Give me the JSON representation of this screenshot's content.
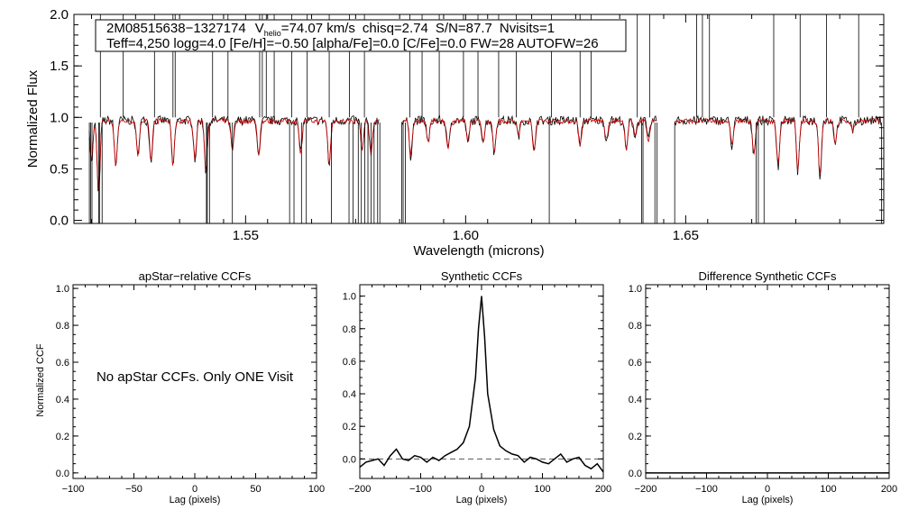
{
  "chart_data": [
    {
      "type": "line",
      "title": "",
      "xlabel": "Wavelength (microns)",
      "ylabel": "Normalized Flux",
      "xlim": [
        1.511,
        1.695
      ],
      "ylim": [
        -0.03,
        2.0
      ],
      "xticks": [
        1.55,
        1.6,
        1.65
      ],
      "xtick_labels": [
        "1.55",
        "1.60",
        "1.65"
      ],
      "yticks": [
        0.0,
        0.5,
        1.0,
        1.5,
        2.0
      ],
      "ytick_labels": [
        "0.0",
        "0.5",
        "1.0",
        "1.5",
        "2.0"
      ],
      "chips": [
        [
          1.5145,
          1.5805
        ],
        [
          1.5855,
          1.6435
        ],
        [
          1.6475,
          1.6945
        ]
      ],
      "series": [
        {
          "name": "observed",
          "color": "#000000"
        },
        {
          "name": "model",
          "color": "#cc0000"
        }
      ],
      "annotation": {
        "star": "2M08515638−1327174",
        "v_label": "V",
        "v_sub": "helio",
        "v_value": "=74.07 km/s",
        "chisq": "chisq=2.74",
        "snr": "S/N=87.7",
        "nvisits": "Nvisits=1",
        "line2": "Teff=4,250 logg=4.0 [Fe/H]=−0.50 [alpha/Fe]=0.0 [C/Fe]=0.0 FW=28 AUTOFW=26"
      },
      "absorption_lines": [
        {
          "x": 1.515,
          "depth": 0.42
        },
        {
          "x": 1.5166,
          "depth": 0.75
        },
        {
          "x": 1.5205,
          "depth": 0.45
        },
        {
          "x": 1.5255,
          "depth": 0.35
        },
        {
          "x": 1.5285,
          "depth": 0.4
        },
        {
          "x": 1.5335,
          "depth": 0.45
        },
        {
          "x": 1.5385,
          "depth": 0.38
        },
        {
          "x": 1.541,
          "depth": 0.5
        },
        {
          "x": 1.547,
          "depth": 0.3
        },
        {
          "x": 1.553,
          "depth": 0.35
        },
        {
          "x": 1.5625,
          "depth": 0.32
        },
        {
          "x": 1.569,
          "depth": 0.45
        },
        {
          "x": 1.5765,
          "depth": 0.3
        },
        {
          "x": 1.5785,
          "depth": 0.35
        },
        {
          "x": 1.5875,
          "depth": 0.35
        },
        {
          "x": 1.5915,
          "depth": 0.22
        },
        {
          "x": 1.596,
          "depth": 0.3
        },
        {
          "x": 1.6005,
          "depth": 0.22
        },
        {
          "x": 1.604,
          "depth": 0.2
        },
        {
          "x": 1.6065,
          "depth": 0.32
        },
        {
          "x": 1.612,
          "depth": 0.15
        },
        {
          "x": 1.6155,
          "depth": 0.3
        },
        {
          "x": 1.626,
          "depth": 0.25
        },
        {
          "x": 1.632,
          "depth": 0.2
        },
        {
          "x": 1.6365,
          "depth": 0.3
        },
        {
          "x": 1.6385,
          "depth": 0.15
        },
        {
          "x": 1.6415,
          "depth": 0.2
        },
        {
          "x": 1.6605,
          "depth": 0.25
        },
        {
          "x": 1.6655,
          "depth": 0.32
        },
        {
          "x": 1.671,
          "depth": 0.45
        },
        {
          "x": 1.6755,
          "depth": 0.5
        },
        {
          "x": 1.6805,
          "depth": 0.55
        },
        {
          "x": 1.684,
          "depth": 0.22
        },
        {
          "x": 1.688,
          "depth": 0.1
        }
      ],
      "sky_spikes_up": [
        1.517,
        1.5222,
        1.5293,
        1.5335,
        1.534,
        1.5425,
        1.546,
        1.5532,
        1.5538,
        1.5547,
        1.5565,
        1.5605,
        1.564,
        1.569,
        1.5736,
        1.577,
        1.5873,
        1.5901,
        1.594,
        1.5995,
        1.6028,
        1.6075,
        1.6115,
        1.6195,
        1.626,
        1.6285,
        1.639,
        1.6418,
        1.6525,
        1.6538,
        1.6554,
        1.67,
        1.676,
        1.682,
        1.6893
      ],
      "sky_spikes_down": [
        1.5148,
        1.5151,
        1.5166,
        1.5168,
        1.5174,
        1.5411,
        1.5413,
        1.5418,
        1.547,
        1.56,
        1.561,
        1.5627,
        1.5638,
        1.5695,
        1.5735,
        1.5744,
        1.5756,
        1.5763,
        1.5771,
        1.5778,
        1.5785,
        1.5792,
        1.58,
        1.5858,
        1.5863,
        1.619,
        1.64,
        1.6403,
        1.643,
        1.666,
        1.6665,
        1.6678
      ]
    },
    {
      "type": "line",
      "title": "apStar−relative CCFs",
      "xlabel": "Lag (pixels)",
      "ylabel": "Normalized CCF",
      "xlim": [
        -100,
        100
      ],
      "ylim": [
        -0.03,
        1.02
      ],
      "xticks": [
        -100,
        -50,
        0,
        50,
        100
      ],
      "xtick_labels": [
        "−100",
        "−50",
        "0",
        "50",
        "100"
      ],
      "yticks": [
        0.0,
        0.2,
        0.4,
        0.6,
        0.8,
        1.0
      ],
      "ytick_labels": [
        "0.0",
        "0.2",
        "0.4",
        "0.6",
        "0.8",
        "1.0"
      ],
      "message": "No apStar CCFs.  Only ONE Visit"
    },
    {
      "type": "line",
      "title": "Synthetic CCFs",
      "xlabel": "Lag (pixels)",
      "ylabel": "",
      "xlim": [
        -200,
        200
      ],
      "ylim": [
        -0.12,
        1.07
      ],
      "xticks": [
        -200,
        -100,
        0,
        100,
        200
      ],
      "xtick_labels": [
        "−200",
        "−100",
        "0",
        "100",
        "200"
      ],
      "yticks": [
        0.0,
        0.2,
        0.4,
        0.6,
        0.8,
        1.0
      ],
      "ytick_labels": [
        "0.0",
        "0.2",
        "0.4",
        "0.6",
        "0.8",
        "1.0"
      ],
      "reference_line": 0.0,
      "peak": {
        "x": 0,
        "y": 1.0
      },
      "series": [
        {
          "name": "ccf",
          "x": [
            -200,
            -190,
            -180,
            -170,
            -160,
            -150,
            -140,
            -130,
            -120,
            -110,
            -100,
            -90,
            -80,
            -70,
            -60,
            -50,
            -40,
            -30,
            -20,
            -10,
            -5,
            0,
            5,
            10,
            20,
            30,
            40,
            50,
            60,
            70,
            80,
            90,
            100,
            110,
            120,
            130,
            140,
            150,
            160,
            170,
            180,
            190,
            200
          ],
          "y": [
            -0.05,
            -0.02,
            -0.01,
            0.0,
            -0.04,
            0.02,
            0.06,
            0.0,
            -0.01,
            0.02,
            0.01,
            -0.02,
            0.01,
            -0.01,
            0.02,
            0.04,
            0.06,
            0.1,
            0.2,
            0.5,
            0.8,
            1.0,
            0.75,
            0.4,
            0.18,
            0.08,
            0.05,
            0.03,
            0.02,
            -0.02,
            0.01,
            0.0,
            -0.02,
            -0.03,
            0.0,
            0.03,
            -0.02,
            0.0,
            0.01,
            -0.04,
            -0.06,
            -0.03,
            -0.08
          ]
        }
      ]
    },
    {
      "type": "line",
      "title": "Difference Synthetic CCFs",
      "xlabel": "Lag (pixels)",
      "ylabel": "",
      "xlim": [
        -200,
        200
      ],
      "ylim": [
        -0.03,
        1.02
      ],
      "xticks": [
        -200,
        -100,
        0,
        100,
        200
      ],
      "xtick_labels": [
        "−200",
        "−100",
        "0",
        "100",
        "200"
      ],
      "yticks": [
        0.0,
        0.2,
        0.4,
        0.6,
        0.8,
        1.0
      ],
      "ytick_labels": [
        "0.0",
        "0.2",
        "0.4",
        "0.6",
        "0.8",
        "1.0"
      ],
      "series": [
        {
          "name": "difference",
          "x": [
            -200,
            200
          ],
          "y": [
            0.0,
            0.0
          ]
        }
      ]
    }
  ]
}
